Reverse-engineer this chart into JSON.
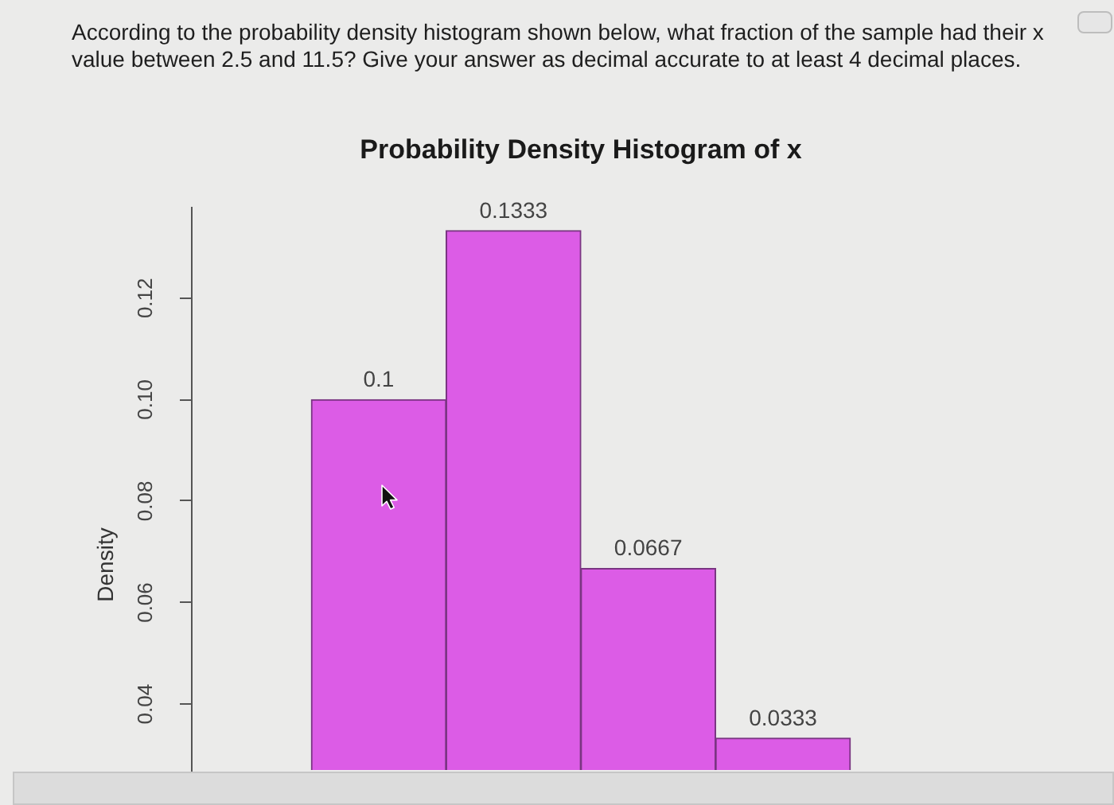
{
  "chart_data": {
    "type": "bar",
    "title": "Probability Density Histogram of x",
    "ylabel": "Density",
    "annotations": [
      "According to the probability density histogram shown below, what fraction of the sample had their x value between 2.5 and 11.5? Give your answer as decimal accurate to at least 4 decimal places."
    ],
    "categories": [
      null,
      null,
      null,
      null
    ],
    "values": [
      0.1,
      0.1333,
      0.0667,
      0.0333
    ],
    "color": "#dc5ce6",
    "ylim": [
      0.027,
      0.138
    ],
    "yticks": [
      0.04,
      0.06,
      0.08,
      {
        "value": 0.1,
        "label": "0.10"
      },
      0.12
    ],
    "data_labels": true,
    "tick_labels": "y"
  }
}
